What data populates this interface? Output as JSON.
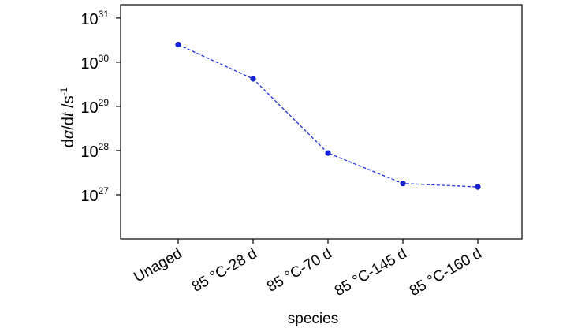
{
  "chart_data": {
    "type": "line",
    "categories": [
      "Unaged",
      "85 °C-28 d",
      "85 °C-70 d",
      "85 °C-145 d",
      "85 °C-160 d"
    ],
    "series": [
      {
        "values": [
          2.5e+30,
          4.2e+29,
          8.8e+27,
          1.8e+27,
          1.5e+27
        ]
      }
    ],
    "y_scale": "log",
    "ylim": [
      1e+26,
      2e+31
    ],
    "y_ticks": [
      {
        "value": 1e+27,
        "base": "10",
        "exp": "27"
      },
      {
        "value": 1e+28,
        "base": "10",
        "exp": "28"
      },
      {
        "value": 1e+29,
        "base": "10",
        "exp": "29"
      },
      {
        "value": 1e+30,
        "base": "10",
        "exp": "30"
      },
      {
        "value": 1e+31,
        "base": "10",
        "exp": "31"
      }
    ],
    "xlabel": "species",
    "ylabel": {
      "d1": "d",
      "alpha": "α",
      "slash": "/d",
      "t": "t",
      "unit": " /s",
      "exp": "-1"
    },
    "grid": false,
    "legend": false,
    "colors": {
      "line": "#1f2fe0",
      "marker": "#1522d8",
      "axis": "#000000"
    }
  }
}
